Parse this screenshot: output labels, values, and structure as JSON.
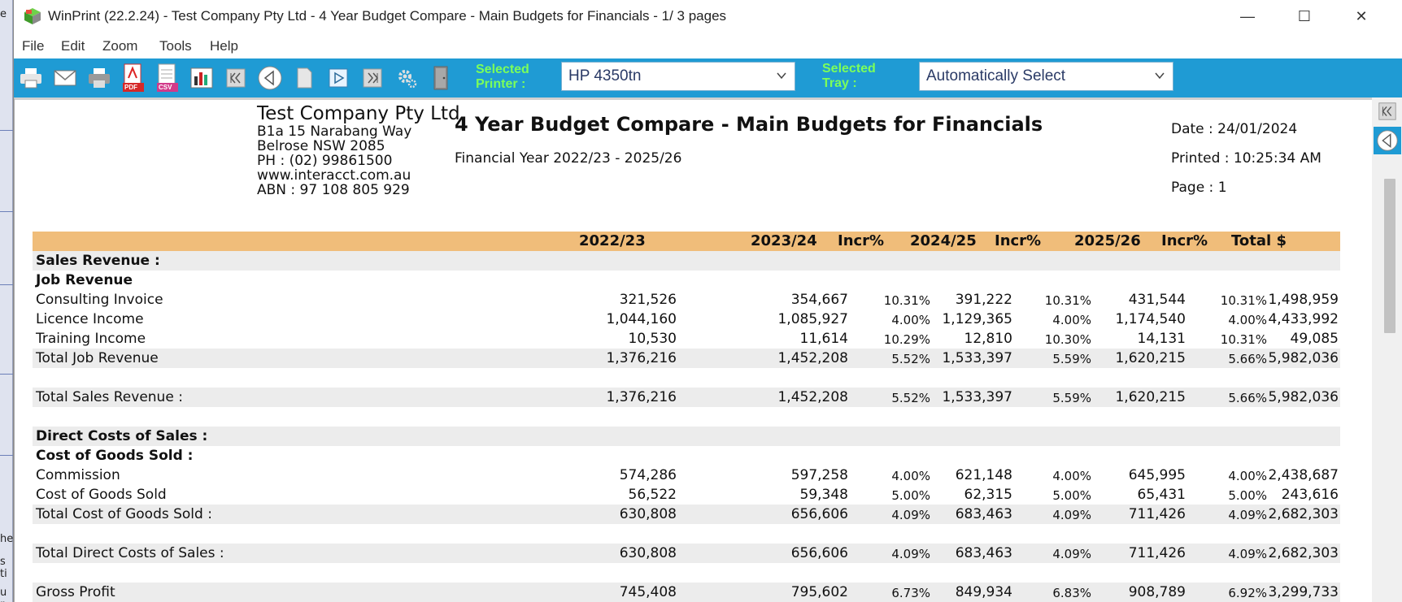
{
  "window": {
    "title": "WinPrint (22.2.24) - Test Company Pty Ltd - 4 Year Budget Compare - Main Budgets for Financials -  1/ 3 pages",
    "minimize_glyph": "—",
    "maximize_glyph": "☐",
    "close_glyph": "✕"
  },
  "background_app": {
    "fragments": [
      "e",
      "he",
      "s ti",
      "u r"
    ]
  },
  "menu": [
    "File",
    "Edit",
    "Zoom",
    "Tools",
    "Help"
  ],
  "toolbar": {
    "icons": [
      "print-icon",
      "email-icon",
      "printer-setup-icon",
      "pdf-icon",
      "csv-icon",
      "chart-icon",
      "first-page-icon",
      "previous-page-icon",
      "page-icon",
      "next-page-icon",
      "last-page-icon",
      "settings-icon",
      "exit-door-icon"
    ],
    "pdf_label": "PDF",
    "csv_label": "CSV",
    "printer_label_1": "Selected",
    "printer_label_2": "Printer :",
    "printer_value": "HP 4350tn",
    "tray_label_1": "Selected",
    "tray_label_2": "Tray :",
    "tray_value": "Automatically Select"
  },
  "colors": {
    "toolbar": "#1f9bd4",
    "header_band": "#f0bd7a",
    "label_green": "#7cff5a",
    "row_shade": "#ececec"
  },
  "report": {
    "company": {
      "name": "Test Company Pty Ltd",
      "address1": "B1a 15 Narabang Way",
      "address2": "Belrose NSW 2085",
      "phone": "PH : (02) 99861500",
      "web": "www.interacct.com.au",
      "abn": "ABN : 97 108 805 929"
    },
    "title": "4 Year Budget Compare - Main Budgets for Financials",
    "subtitle": "Financial Year 2022/23 - 2025/26",
    "date": "Date : 24/01/2024",
    "printed": "Printed : 10:25:34 AM",
    "page": "Page : 1",
    "columns": [
      "2022/23",
      "2023/24",
      "Incr%",
      "2024/25",
      "Incr%",
      "2025/26",
      "Incr%",
      "Total $"
    ],
    "rows": [
      {
        "label": "Sales Revenue :",
        "bold": true,
        "shade": true,
        "values": []
      },
      {
        "label": "Job Revenue",
        "bold": true,
        "shade": false,
        "values": []
      },
      {
        "label": "Consulting Invoice",
        "bold": false,
        "shade": false,
        "values": [
          "321,526",
          "354,667",
          "10.31%",
          "391,222",
          "10.31%",
          "431,544",
          "10.31%",
          "1,498,959"
        ]
      },
      {
        "label": "Licence Income",
        "bold": false,
        "shade": false,
        "values": [
          "1,044,160",
          "1,085,927",
          "4.00%",
          "1,129,365",
          "4.00%",
          "1,174,540",
          "4.00%",
          "4,433,992"
        ]
      },
      {
        "label": "Training Income",
        "bold": false,
        "shade": false,
        "values": [
          "10,530",
          "11,614",
          "10.29%",
          "12,810",
          "10.30%",
          "14,131",
          "10.31%",
          "49,085"
        ]
      },
      {
        "label": "Total Job Revenue",
        "bold": false,
        "shade": true,
        "values": [
          "1,376,216",
          "1,452,208",
          "5.52%",
          "1,533,397",
          "5.59%",
          "1,620,215",
          "5.66%",
          "5,982,036"
        ]
      },
      {
        "label": "",
        "bold": false,
        "shade": false,
        "values": []
      },
      {
        "label": "Total Sales Revenue :",
        "bold": false,
        "shade": true,
        "values": [
          "1,376,216",
          "1,452,208",
          "5.52%",
          "1,533,397",
          "5.59%",
          "1,620,215",
          "5.66%",
          "5,982,036"
        ]
      },
      {
        "label": "",
        "bold": false,
        "shade": false,
        "values": []
      },
      {
        "label": "Direct Costs of Sales :",
        "bold": true,
        "shade": true,
        "values": []
      },
      {
        "label": "Cost of Goods Sold :",
        "bold": true,
        "shade": false,
        "values": []
      },
      {
        "label": "Commission",
        "bold": false,
        "shade": false,
        "values": [
          "574,286",
          "597,258",
          "4.00%",
          "621,148",
          "4.00%",
          "645,995",
          "4.00%",
          "2,438,687"
        ]
      },
      {
        "label": "Cost of Goods Sold",
        "bold": false,
        "shade": false,
        "values": [
          "56,522",
          "59,348",
          "5.00%",
          "62,315",
          "5.00%",
          "65,431",
          "5.00%",
          "243,616"
        ]
      },
      {
        "label": "Total Cost of Goods Sold :",
        "bold": false,
        "shade": true,
        "values": [
          "630,808",
          "656,606",
          "4.09%",
          "683,463",
          "4.09%",
          "711,426",
          "4.09%",
          "2,682,303"
        ]
      },
      {
        "label": "",
        "bold": false,
        "shade": false,
        "values": []
      },
      {
        "label": "Total Direct Costs of Sales :",
        "bold": false,
        "shade": true,
        "values": [
          "630,808",
          "656,606",
          "4.09%",
          "683,463",
          "4.09%",
          "711,426",
          "4.09%",
          "2,682,303"
        ]
      },
      {
        "label": "",
        "bold": false,
        "shade": false,
        "values": []
      },
      {
        "label": "Gross Profit",
        "bold": false,
        "shade": true,
        "values": [
          "745,408",
          "795,602",
          "6.73%",
          "849,934",
          "6.83%",
          "908,789",
          "6.92%",
          "3,299,733"
        ]
      }
    ]
  }
}
